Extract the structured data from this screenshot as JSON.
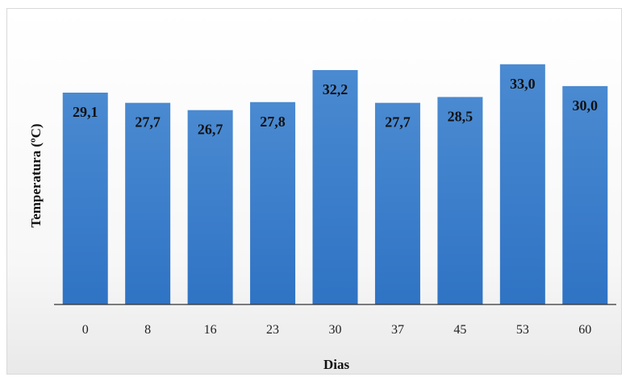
{
  "chart_data": {
    "type": "bar",
    "categories": [
      "0",
      "8",
      "16",
      "23",
      "30",
      "37",
      "45",
      "53",
      "60"
    ],
    "values": [
      29.1,
      27.7,
      26.7,
      27.8,
      32.2,
      27.7,
      28.5,
      33.0,
      30.0
    ],
    "value_labels": [
      "29,1",
      "27,7",
      "26,7",
      "27,8",
      "32,2",
      "27,7",
      "28,5",
      "33,0",
      "30,0"
    ],
    "xlabel": "Dias",
    "ylabel": "Temperatura (ºC)",
    "ylim": [
      0,
      37.4
    ],
    "grid": false,
    "legend": "none",
    "bar_color": "#4a8ad1",
    "bar_color_dark": "#2f73c4"
  }
}
